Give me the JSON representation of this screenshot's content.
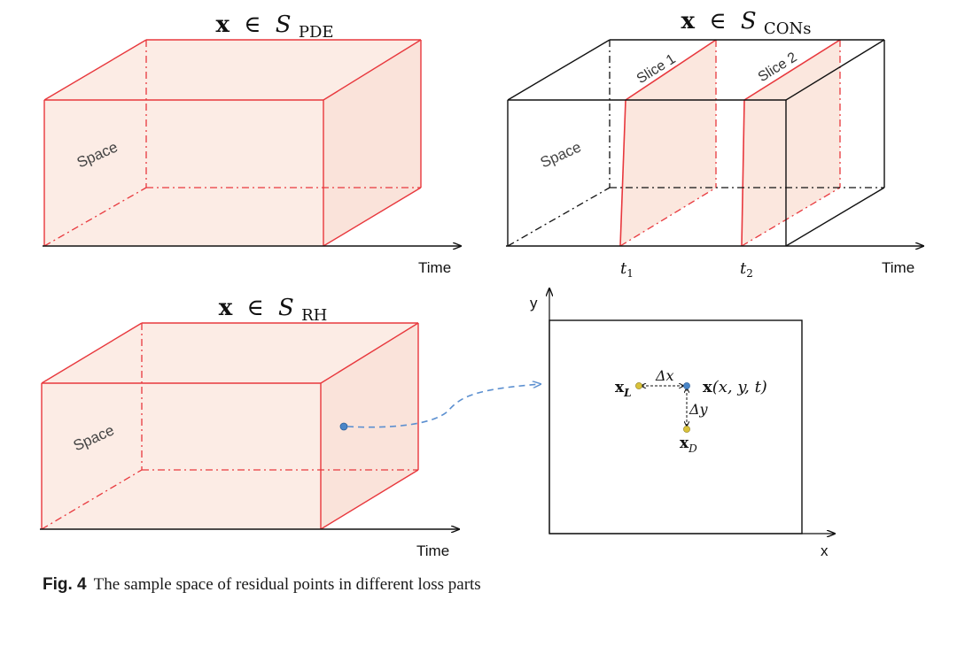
{
  "panels": {
    "pde": {
      "title_var": "x",
      "title_rel": "∈",
      "title_set": "S",
      "title_sub": "PDE",
      "space_label": "Space",
      "axis_label": "Time"
    },
    "cons": {
      "title_var": "x",
      "title_rel": "∈",
      "title_set": "S",
      "title_sub": "CONs",
      "space_label": "Space",
      "axis_label": "Time",
      "slice1_label": "Slice 1",
      "slice2_label": "Slice 2",
      "t1_base": "t",
      "t1_sub": "1",
      "t2_base": "t",
      "t2_sub": "2"
    },
    "rh": {
      "title_var": "x",
      "title_rel": "∈",
      "title_set": "S",
      "title_sub": "RH",
      "space_label": "Space",
      "axis_label": "Time"
    },
    "plane": {
      "y_axis": "y",
      "x_axis": "x",
      "xl_var": "x",
      "xl_sub": "L",
      "xd_var": "x",
      "xd_sub": "D",
      "center_var": "x",
      "center_args": "(x, y, t)",
      "dx_label": "Δx",
      "dy_label": "Δy"
    }
  },
  "colors": {
    "box_red": "#e8383d",
    "box_fill": "#fbe9e1",
    "black": "#111111",
    "point_blue": "#4a86c8",
    "point_yellow": "#d9c23a",
    "arrow_blue": "#5b8fd0"
  },
  "caption": {
    "label": "Fig. 4",
    "text": "The sample space of residual points in different loss parts"
  }
}
